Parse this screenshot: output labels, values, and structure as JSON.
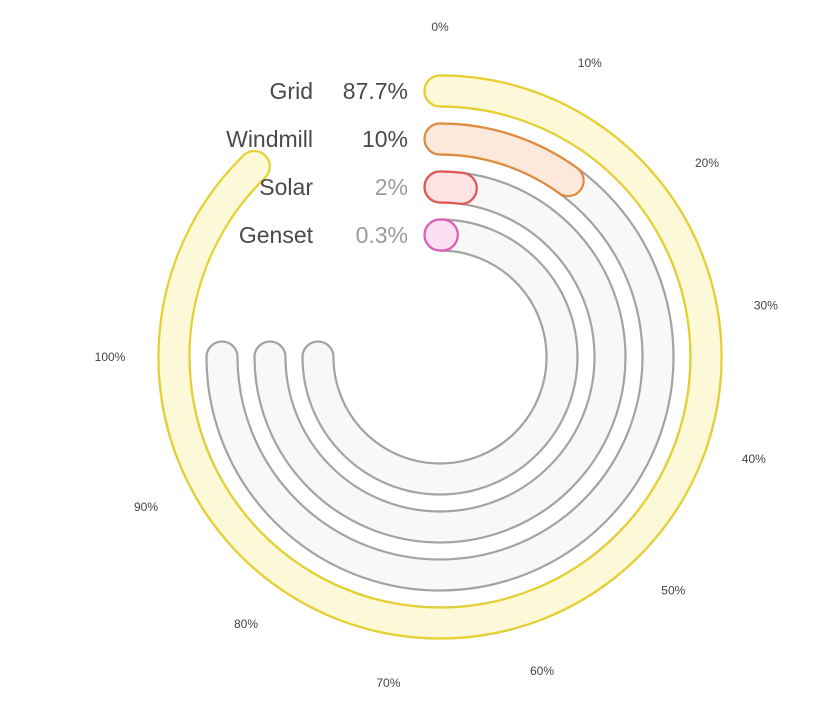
{
  "chart_data": {
    "type": "radial-bar",
    "title": "",
    "scale": {
      "min": 0,
      "max": 100,
      "unit": "%",
      "track_extent": 75
    },
    "tick_labels": [
      "0%",
      "10%",
      "20%",
      "30%",
      "40%",
      "50%",
      "60%",
      "70%",
      "80%",
      "90%",
      "100%"
    ],
    "series": [
      {
        "name": "Grid",
        "value": 87.7,
        "value_label": "87.7%",
        "stroke": "#e6d02e",
        "fill": "#fdf8d7",
        "value_color": "#4a4a4a"
      },
      {
        "name": "Windmill",
        "value": 10,
        "value_label": "10%",
        "stroke": "#e08a3c",
        "fill": "#fde9dc",
        "value_color": "#4a4a4a"
      },
      {
        "name": "Solar",
        "value": 2,
        "value_label": "2%",
        "stroke": "#e0554f",
        "fill": "#fde3e3",
        "value_color": "#9b9b9b"
      },
      {
        "name": "Genset",
        "value": 0.3,
        "value_label": "0.3%",
        "stroke": "#de5bb5",
        "fill": "#fbe0f3",
        "value_color": "#9b9b9b"
      }
    ],
    "track": {
      "stroke": "#a3a3a3",
      "fill": "#f8f8f8"
    }
  }
}
